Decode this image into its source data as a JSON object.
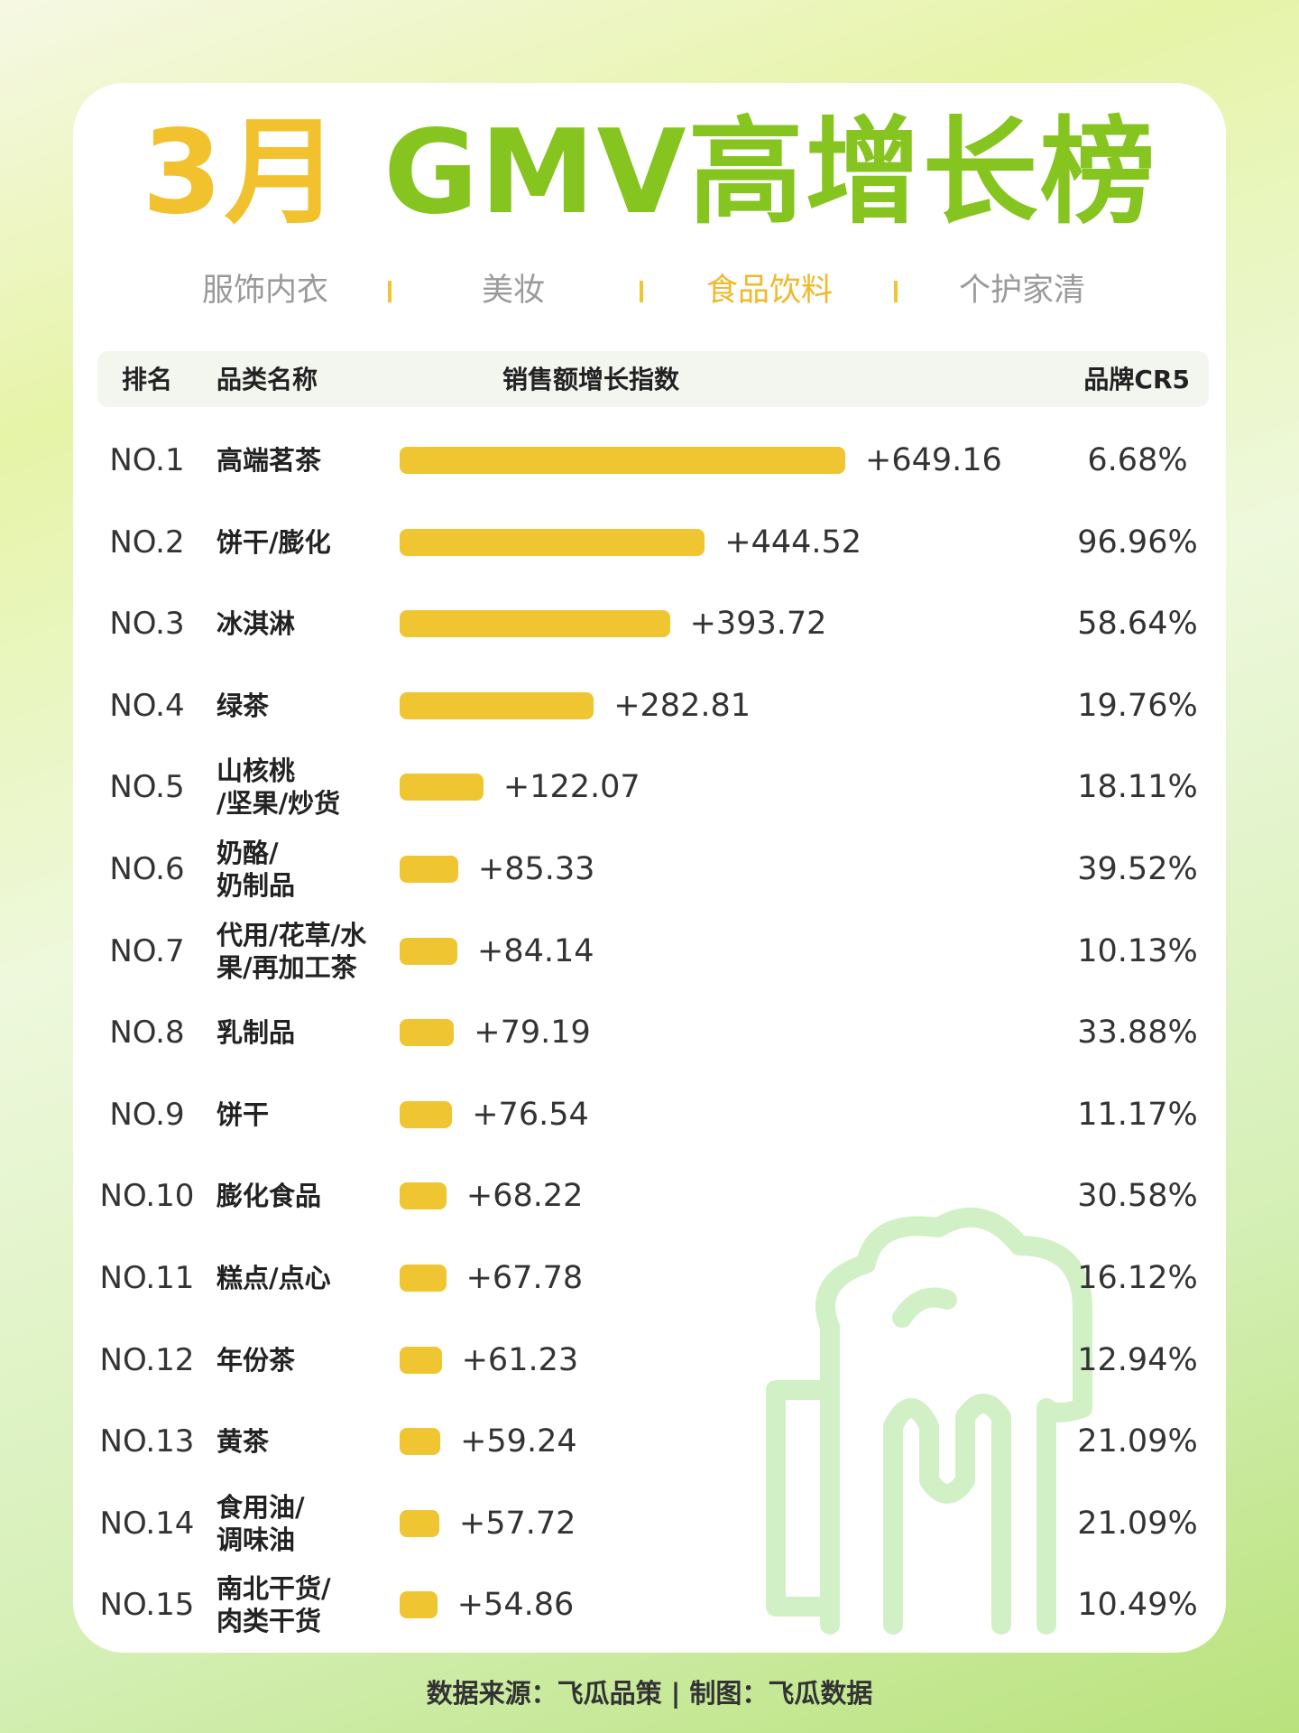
{
  "chart_data": {
    "type": "bar",
    "title_month": "3月",
    "title_main": "GMV高增长榜",
    "tabs": [
      "服饰内衣",
      "美妆",
      "食品饮料",
      "个护家清"
    ],
    "active_tab": 2,
    "columns": [
      "排名",
      "品类名称",
      "销售额增长指数",
      "品牌CR5"
    ],
    "ranks": [
      "NO.1",
      "NO.2",
      "NO.3",
      "NO.4",
      "NO.5",
      "NO.6",
      "NO.7",
      "NO.8",
      "NO.9",
      "NO.10",
      "NO.11",
      "NO.12",
      "NO.13",
      "NO.14",
      "NO.15"
    ],
    "categories": [
      "高端茗茶",
      "饼干/膨化",
      "冰淇淋",
      "绿茶",
      "山核桃\n/坚果/炒货",
      "奶酪/\n奶制品",
      "代用/花草/水\n果/再加工茶",
      "乳制品",
      "饼干",
      "膨化食品",
      "糕点/点心",
      "年份茶",
      "黄茶",
      "食用油/\n调味油",
      "南北干货/\n肉类干货"
    ],
    "values": [
      649.16,
      444.52,
      393.72,
      282.81,
      122.07,
      85.33,
      84.14,
      79.19,
      76.54,
      68.22,
      67.78,
      61.23,
      59.24,
      57.72,
      54.86
    ],
    "value_labels": [
      "+649.16",
      "+444.52",
      "+393.72",
      "+282.81",
      "+122.07",
      "+85.33",
      "+84.14",
      "+79.19",
      "+76.54",
      "+68.22",
      "+67.78",
      "+61.23",
      "+59.24",
      "+57.72",
      "+54.86"
    ],
    "cr5": [
      "6.68%",
      "96.96%",
      "58.64%",
      "19.76%",
      "18.11%",
      "39.52%",
      "10.13%",
      "33.88%",
      "11.17%",
      "30.58%",
      "16.12%",
      "12.94%",
      "21.09%",
      "21.09%",
      "10.49%"
    ],
    "color": "#f0c532",
    "source": "数据来源：飞瓜品策 | 制图：飞瓜数据"
  }
}
